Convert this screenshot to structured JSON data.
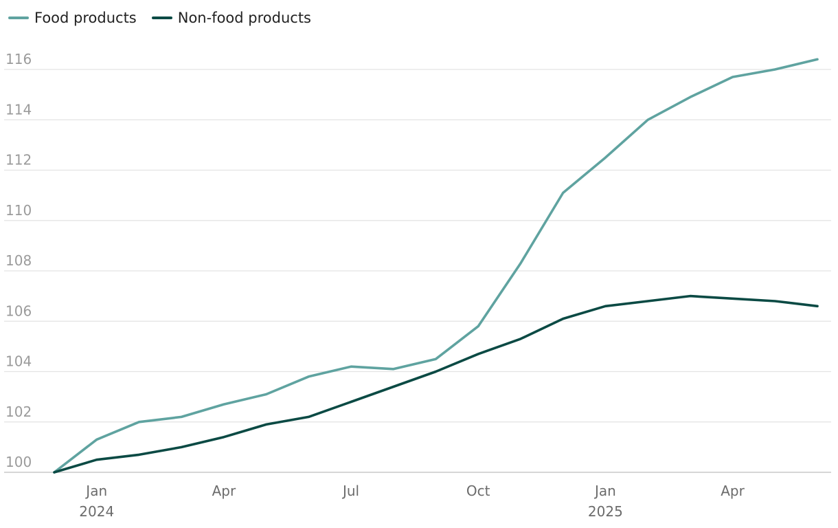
{
  "chart_data": {
    "type": "line",
    "title": "",
    "xlabel": "",
    "ylabel": "",
    "ylim": [
      100,
      116
    ],
    "yticks": [
      100,
      102,
      104,
      106,
      108,
      110,
      112,
      114,
      116
    ],
    "x": [
      "Dec 2023",
      "Jan 2024",
      "Feb 2024",
      "Mar 2024",
      "Apr 2024",
      "May 2024",
      "Jun 2024",
      "Jul 2024",
      "Aug 2024",
      "Sep 2024",
      "Oct 2024",
      "Nov 2024",
      "Dec 2024",
      "Jan 2025",
      "Feb 2025",
      "Mar 2025",
      "Apr 2025",
      "May 2025",
      "Jun 2025"
    ],
    "x_tick_labels": [
      {
        "index": 1,
        "label": "Jan",
        "year": "2024"
      },
      {
        "index": 4,
        "label": "Apr",
        "year": ""
      },
      {
        "index": 7,
        "label": "Jul",
        "year": ""
      },
      {
        "index": 10,
        "label": "Oct",
        "year": ""
      },
      {
        "index": 13,
        "label": "Jan",
        "year": "2025"
      },
      {
        "index": 16,
        "label": "Apr",
        "year": ""
      }
    ],
    "series": [
      {
        "name": "Food products",
        "color": "#5fa3a0",
        "values": [
          100.0,
          101.3,
          102.0,
          102.2,
          102.7,
          103.1,
          103.8,
          104.2,
          104.1,
          104.5,
          105.8,
          108.3,
          111.1,
          112.5,
          114.0,
          114.9,
          115.7,
          116.0,
          116.4
        ]
      },
      {
        "name": "Non-food products",
        "color": "#0b4a44",
        "values": [
          100.0,
          100.5,
          100.7,
          101.0,
          101.4,
          101.9,
          102.2,
          102.8,
          103.4,
          104.0,
          104.7,
          105.3,
          106.1,
          106.6,
          106.8,
          107.0,
          106.9,
          106.8,
          106.6
        ]
      }
    ],
    "grid": true,
    "legend": "top-left"
  }
}
